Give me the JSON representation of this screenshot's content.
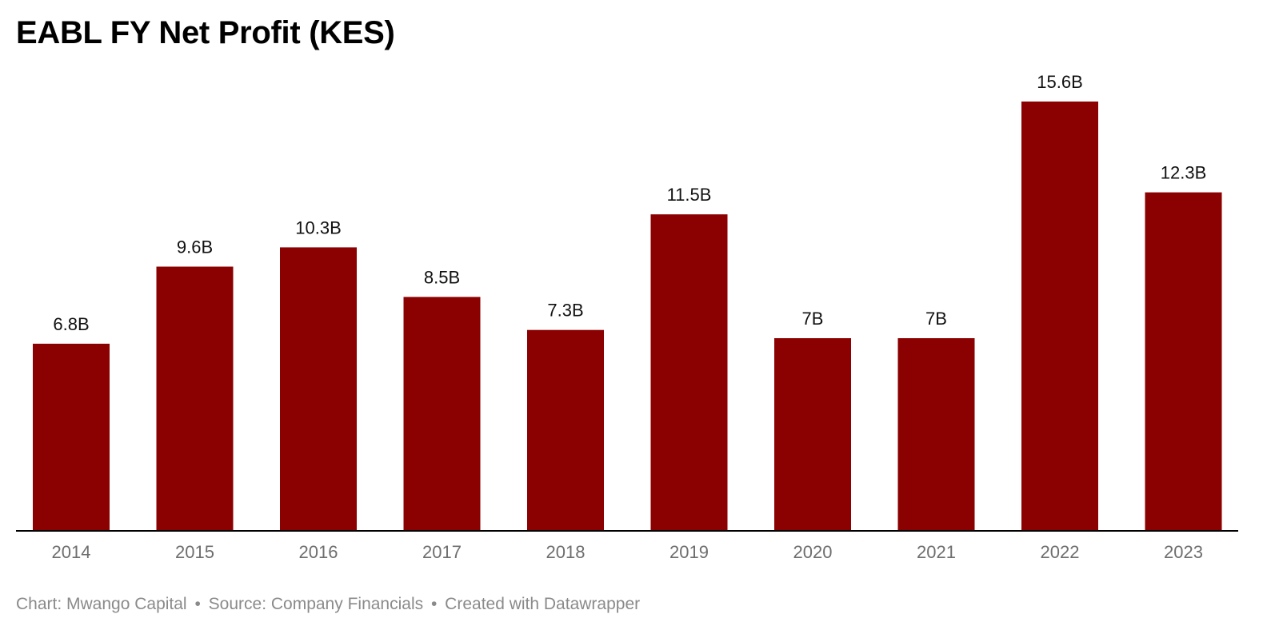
{
  "chart_data": {
    "type": "bar",
    "title": "EABL FY Net Profit (KES)",
    "categories": [
      "2014",
      "2015",
      "2016",
      "2017",
      "2018",
      "2019",
      "2020",
      "2021",
      "2022",
      "2023"
    ],
    "values": [
      6.8,
      9.6,
      10.3,
      8.5,
      7.3,
      11.5,
      7.0,
      7.0,
      15.6,
      12.3
    ],
    "value_labels": [
      "6.8B",
      "9.6B",
      "10.3B",
      "8.5B",
      "7.3B",
      "11.5B",
      "7B",
      "7B",
      "15.6B",
      "12.3B"
    ],
    "unit": "B",
    "xlabel": "",
    "ylabel": "",
    "ylim": [
      0,
      15.6
    ],
    "grid": false,
    "legend": "none",
    "bar_color": "#8b0000"
  },
  "footer": {
    "credit": "Chart: Mwango Capital",
    "source": "Source: Company Financials",
    "created_with": "Created with Datawrapper",
    "separator": "•"
  }
}
